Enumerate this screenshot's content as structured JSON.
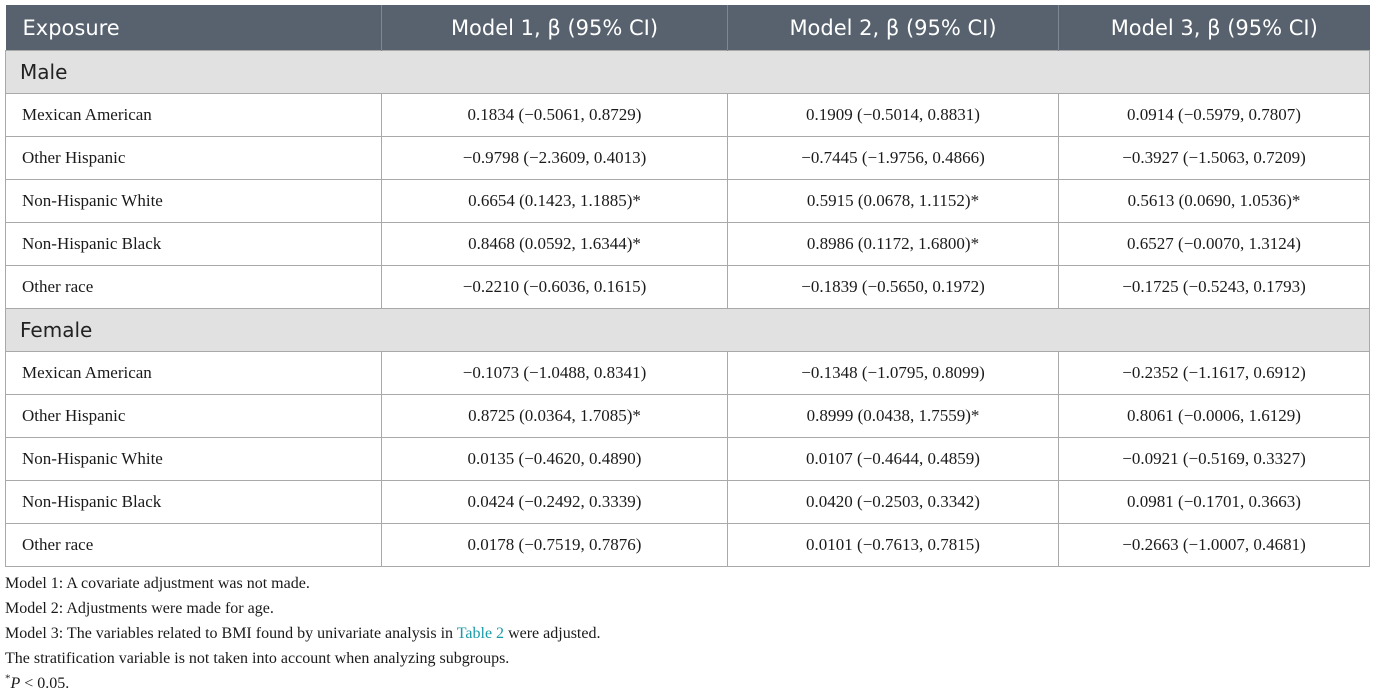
{
  "header": {
    "col0": "Exposure",
    "col1": "Model 1, β (95% CI)",
    "col2": "Model 2, β (95% CI)",
    "col3": "Model 3, β (95% CI)"
  },
  "sections": {
    "male": {
      "label": "Male",
      "rows": [
        {
          "exposure": "Mexican American",
          "m1": "0.1834 (−0.5061, 0.8729)",
          "m2": "0.1909 (−0.5014, 0.8831)",
          "m3": "0.0914 (−0.5979, 0.7807)"
        },
        {
          "exposure": "Other Hispanic",
          "m1": "−0.9798 (−2.3609, 0.4013)",
          "m2": "−0.7445 (−1.9756, 0.4866)",
          "m3": "−0.3927 (−1.5063, 0.7209)"
        },
        {
          "exposure": "Non-Hispanic White",
          "m1": "0.6654 (0.1423, 1.1885)*",
          "m2": "0.5915 (0.0678, 1.1152)*",
          "m3": "0.5613 (0.0690, 1.0536)*"
        },
        {
          "exposure": "Non-Hispanic Black",
          "m1": "0.8468 (0.0592, 1.6344)*",
          "m2": "0.8986 (0.1172, 1.6800)*",
          "m3": "0.6527 (−0.0070, 1.3124)"
        },
        {
          "exposure": "Other race",
          "m1": "−0.2210 (−0.6036, 0.1615)",
          "m2": "−0.1839 (−0.5650, 0.1972)",
          "m3": "−0.1725 (−0.5243, 0.1793)"
        }
      ]
    },
    "female": {
      "label": "Female",
      "rows": [
        {
          "exposure": "Mexican American",
          "m1": "−0.1073 (−1.0488, 0.8341)",
          "m2": "−0.1348 (−1.0795, 0.8099)",
          "m3": "−0.2352 (−1.1617, 0.6912)"
        },
        {
          "exposure": "Other Hispanic",
          "m1": "0.8725 (0.0364, 1.7085)*",
          "m2": "0.8999 (0.0438, 1.7559)*",
          "m3": "0.8061 (−0.0006, 1.6129)"
        },
        {
          "exposure": "Non-Hispanic White",
          "m1": "0.0135 (−0.4620, 0.4890)",
          "m2": "0.0107 (−0.4644, 0.4859)",
          "m3": "−0.0921 (−0.5169, 0.3327)"
        },
        {
          "exposure": "Non-Hispanic Black",
          "m1": "0.0424 (−0.2492, 0.3339)",
          "m2": "0.0420 (−0.2503, 0.3342)",
          "m3": "0.0981 (−0.1701, 0.3663)"
        },
        {
          "exposure": "Other race",
          "m1": "0.0178 (−0.7519, 0.7876)",
          "m2": "0.0101 (−0.7613, 0.7815)",
          "m3": "−0.2663 (−1.0007, 0.4681)"
        }
      ]
    }
  },
  "notes": {
    "model1": "Model 1: A covariate adjustment was not made.",
    "model2": "Model 2: Adjustments were made for age.",
    "model3_before": "Model 3: The variables related to BMI found by univariate analysis in ",
    "model3_link": "Table 2",
    "model3_after": " were adjusted.",
    "stratification": "The stratification variable is not taken into account when analyzing subgroups.",
    "p_star": "*",
    "p_var": "P",
    "p_rest": " < 0.05."
  },
  "colors": {
    "header_bg": "#57626e",
    "section_bg": "#e1e1e1",
    "link": "#1a9ba8",
    "border": "#a9a9a9"
  }
}
